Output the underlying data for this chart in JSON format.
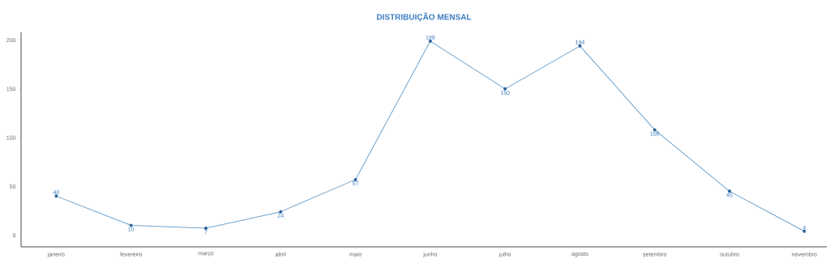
{
  "chart_data": {
    "type": "line",
    "title": "DISTRIBUIÇÃO MENSAL",
    "categories": [
      "janeiro",
      "fevereiro",
      "março",
      "abril",
      "maio",
      "junho",
      "julho",
      "agosto",
      "setembro",
      "outubro",
      "novembro"
    ],
    "values": [
      40,
      10,
      7,
      24,
      57,
      199,
      150,
      194,
      108,
      45,
      4
    ],
    "color": "#6fa3cc",
    "ylim": [
      -12,
      208
    ],
    "yticks": [
      0,
      50,
      100,
      150,
      200
    ],
    "marker": "circle",
    "data_labels": true
  }
}
